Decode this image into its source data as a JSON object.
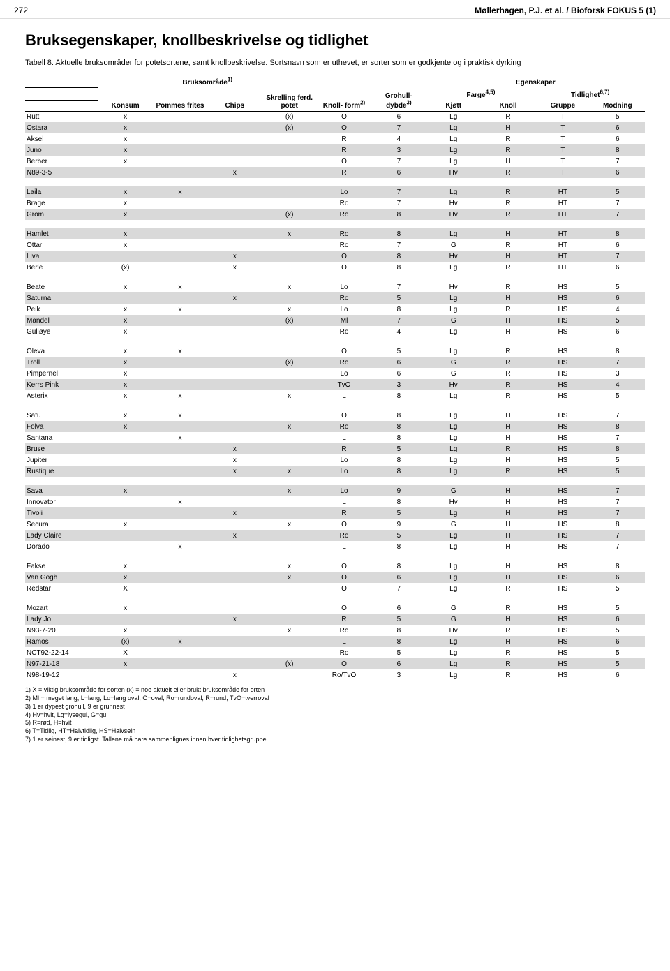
{
  "header": {
    "page_num": "272",
    "authors": "Møllerhagen, P.J. et al. / Bioforsk FOKUS 5 (1)"
  },
  "title": "Bruksegenskaper, knollbeskrivelse og tidlighet",
  "caption": "Tabell 8. Aktuelle bruksområder for potetsortene, samt knollbeskrivelse. Sortsnavn som er uthevet, er sorter som er godkjente og i praktisk dyrking",
  "columns": {
    "group_usage": "Bruksområde",
    "group_prop": "Egenskaper",
    "konsum": "Konsum",
    "pommes": "Pommes frites",
    "chips": "Chips",
    "skrelling": "Skrelling ferd. potet",
    "knollform": "Knoll- form",
    "grohull": "Grohull- dybde",
    "farge": "Farge",
    "kjott": "Kjøtt",
    "knoll": "Knoll",
    "tidlighet": "Tidlighet",
    "gruppe": "Gruppe",
    "modning": "Modning"
  },
  "colors": {
    "stripe": "#d9d9d9",
    "bg": "#ffffff",
    "text": "#000000",
    "border": "#000000"
  },
  "groups": [
    [
      {
        "n": "Rutt",
        "konsum": "x",
        "pommes": "",
        "chips": "",
        "skrelling": "(x)",
        "form": "O",
        "gro": "6",
        "kjott": "Lg",
        "knoll": "R",
        "gruppe": "T",
        "mod": "5"
      },
      {
        "n": "Ostara",
        "konsum": "x",
        "pommes": "",
        "chips": "",
        "skrelling": "(x)",
        "form": "O",
        "gro": "7",
        "kjott": "Lg",
        "knoll": "H",
        "gruppe": "T",
        "mod": "6",
        "stripe": true
      },
      {
        "n": "Aksel",
        "konsum": "x",
        "pommes": "",
        "chips": "",
        "skrelling": "",
        "form": "R",
        "gro": "4",
        "kjott": "Lg",
        "knoll": "R",
        "gruppe": "T",
        "mod": "6"
      },
      {
        "n": "Juno",
        "konsum": "x",
        "pommes": "",
        "chips": "",
        "skrelling": "",
        "form": "R",
        "gro": "3",
        "kjott": "Lg",
        "knoll": "R",
        "gruppe": "T",
        "mod": "8",
        "stripe": true
      },
      {
        "n": "Berber",
        "konsum": "x",
        "pommes": "",
        "chips": "",
        "skrelling": "",
        "form": "O",
        "gro": "7",
        "kjott": "Lg",
        "knoll": "H",
        "gruppe": "T",
        "mod": "7"
      },
      {
        "n": "N89-3-5",
        "konsum": "",
        "pommes": "",
        "chips": "x",
        "skrelling": "",
        "form": "R",
        "gro": "6",
        "kjott": "Hv",
        "knoll": "R",
        "gruppe": "T",
        "mod": "6",
        "stripe": true
      }
    ],
    [
      {
        "n": "Laila",
        "konsum": "x",
        "pommes": "x",
        "chips": "",
        "skrelling": "",
        "form": "Lo",
        "gro": "7",
        "kjott": "Lg",
        "knoll": "R",
        "gruppe": "HT",
        "mod": "5",
        "stripe": true
      },
      {
        "n": "Brage",
        "konsum": "x",
        "pommes": "",
        "chips": "",
        "skrelling": "",
        "form": "Ro",
        "gro": "7",
        "kjott": "Hv",
        "knoll": "R",
        "gruppe": "HT",
        "mod": "7"
      },
      {
        "n": "Grom",
        "konsum": "x",
        "pommes": "",
        "chips": "",
        "skrelling": "(x)",
        "form": "Ro",
        "gro": "8",
        "kjott": "Hv",
        "knoll": "R",
        "gruppe": "HT",
        "mod": "7",
        "stripe": true
      }
    ],
    [
      {
        "n": "Hamlet",
        "konsum": "x",
        "pommes": "",
        "chips": "",
        "skrelling": "x",
        "form": "Ro",
        "gro": "8",
        "kjott": "Lg",
        "knoll": "H",
        "gruppe": "HT",
        "mod": "8",
        "stripe": true
      },
      {
        "n": "Ottar",
        "konsum": "x",
        "pommes": "",
        "chips": "",
        "skrelling": "",
        "form": "Ro",
        "gro": "7",
        "kjott": "G",
        "knoll": "R",
        "gruppe": "HT",
        "mod": "6"
      },
      {
        "n": "Liva",
        "konsum": "",
        "pommes": "",
        "chips": "x",
        "skrelling": "",
        "form": "O",
        "gro": "8",
        "kjott": "Hv",
        "knoll": "H",
        "gruppe": "HT",
        "mod": "7",
        "stripe": true
      },
      {
        "n": "Berle",
        "konsum": "(x)",
        "pommes": "",
        "chips": "x",
        "skrelling": "",
        "form": "O",
        "gro": "8",
        "kjott": "Lg",
        "knoll": "R",
        "gruppe": "HT",
        "mod": "6"
      }
    ],
    [
      {
        "n": "Beate",
        "konsum": "x",
        "pommes": "x",
        "chips": "",
        "skrelling": "x",
        "form": "Lo",
        "gro": "7",
        "kjott": "Hv",
        "knoll": "R",
        "gruppe": "HS",
        "mod": "5"
      },
      {
        "n": "Saturna",
        "konsum": "",
        "pommes": "",
        "chips": "x",
        "skrelling": "",
        "form": "Ro",
        "gro": "5",
        "kjott": "Lg",
        "knoll": "H",
        "gruppe": "HS",
        "mod": "6",
        "stripe": true
      },
      {
        "n": "Peik",
        "konsum": "x",
        "pommes": "x",
        "chips": "",
        "skrelling": "x",
        "form": "Lo",
        "gro": "8",
        "kjott": "Lg",
        "knoll": "R",
        "gruppe": "HS",
        "mod": "4"
      },
      {
        "n": "Mandel",
        "konsum": "x",
        "pommes": "",
        "chips": "",
        "skrelling": "(x)",
        "form": "Ml",
        "gro": "7",
        "kjott": "G",
        "knoll": "H",
        "gruppe": "HS",
        "mod": "5",
        "stripe": true
      },
      {
        "n": "Gulløye",
        "konsum": "x",
        "pommes": "",
        "chips": "",
        "skrelling": "",
        "form": "Ro",
        "gro": "4",
        "kjott": "Lg",
        "knoll": "H",
        "gruppe": "HS",
        "mod": "6"
      }
    ],
    [
      {
        "n": "Oleva",
        "konsum": "x",
        "pommes": "x",
        "chips": "",
        "skrelling": "",
        "form": "O",
        "gro": "5",
        "kjott": "Lg",
        "knoll": "R",
        "gruppe": "HS",
        "mod": "8"
      },
      {
        "n": "Troll",
        "konsum": "x",
        "pommes": "",
        "chips": "",
        "skrelling": "(x)",
        "form": "Ro",
        "gro": "6",
        "kjott": "G",
        "knoll": "R",
        "gruppe": "HS",
        "mod": "7",
        "stripe": true
      },
      {
        "n": "Pimpernel",
        "konsum": "x",
        "pommes": "",
        "chips": "",
        "skrelling": "",
        "form": "Lo",
        "gro": "6",
        "kjott": "G",
        "knoll": "R",
        "gruppe": "HS",
        "mod": "3"
      },
      {
        "n": "Kerrs Pink",
        "konsum": "x",
        "pommes": "",
        "chips": "",
        "skrelling": "",
        "form": "TvO",
        "gro": "3",
        "kjott": "Hv",
        "knoll": "R",
        "gruppe": "HS",
        "mod": "4",
        "stripe": true
      },
      {
        "n": "Asterix",
        "konsum": "x",
        "pommes": "x",
        "chips": "",
        "skrelling": "x",
        "form": "L",
        "gro": "8",
        "kjott": "Lg",
        "knoll": "R",
        "gruppe": "HS",
        "mod": "5"
      }
    ],
    [
      {
        "n": "Satu",
        "konsum": "x",
        "pommes": "x",
        "chips": "",
        "skrelling": "",
        "form": "O",
        "gro": "8",
        "kjott": "Lg",
        "knoll": "H",
        "gruppe": "HS",
        "mod": "7"
      },
      {
        "n": "Folva",
        "konsum": "x",
        "pommes": "",
        "chips": "",
        "skrelling": "x",
        "form": "Ro",
        "gro": "8",
        "kjott": "Lg",
        "knoll": "H",
        "gruppe": "HS",
        "mod": "8",
        "stripe": true
      },
      {
        "n": "Santana",
        "konsum": "",
        "pommes": "x",
        "chips": "",
        "skrelling": "",
        "form": "L",
        "gro": "8",
        "kjott": "Lg",
        "knoll": "H",
        "gruppe": "HS",
        "mod": "7"
      },
      {
        "n": "Bruse",
        "konsum": "",
        "pommes": "",
        "chips": "x",
        "skrelling": "",
        "form": "R",
        "gro": "5",
        "kjott": "Lg",
        "knoll": "R",
        "gruppe": "HS",
        "mod": "8",
        "stripe": true
      },
      {
        "n": "Jupiter",
        "konsum": "",
        "pommes": "",
        "chips": "x",
        "skrelling": "",
        "form": "Lo",
        "gro": "8",
        "kjott": "Lg",
        "knoll": "H",
        "gruppe": "HS",
        "mod": "5"
      },
      {
        "n": "Rustique",
        "konsum": "",
        "pommes": "",
        "chips": "x",
        "skrelling": "x",
        "form": "Lo",
        "gro": "8",
        "kjott": "Lg",
        "knoll": "R",
        "gruppe": "HS",
        "mod": "5",
        "stripe": true
      }
    ],
    [
      {
        "n": "Sava",
        "konsum": "x",
        "pommes": "",
        "chips": "",
        "skrelling": "x",
        "form": "Lo",
        "gro": "9",
        "kjott": "G",
        "knoll": "H",
        "gruppe": "HS",
        "mod": "7",
        "stripe": true
      },
      {
        "n": "Innovator",
        "konsum": "",
        "pommes": "x",
        "chips": "",
        "skrelling": "",
        "form": "L",
        "gro": "8",
        "kjott": "Hv",
        "knoll": "H",
        "gruppe": "HS",
        "mod": "7"
      },
      {
        "n": "Tivoli",
        "konsum": "",
        "pommes": "",
        "chips": "x",
        "skrelling": "",
        "form": "R",
        "gro": "5",
        "kjott": "Lg",
        "knoll": "H",
        "gruppe": "HS",
        "mod": "7",
        "stripe": true
      },
      {
        "n": "Secura",
        "konsum": "x",
        "pommes": "",
        "chips": "",
        "skrelling": "x",
        "form": "O",
        "gro": "9",
        "kjott": "G",
        "knoll": "H",
        "gruppe": "HS",
        "mod": "8"
      },
      {
        "n": "Lady Claire",
        "konsum": "",
        "pommes": "",
        "chips": "x",
        "skrelling": "",
        "form": "Ro",
        "gro": "5",
        "kjott": "Lg",
        "knoll": "H",
        "gruppe": "HS",
        "mod": "7",
        "stripe": true
      },
      {
        "n": "Dorado",
        "konsum": "",
        "pommes": "x",
        "chips": "",
        "skrelling": "",
        "form": "L",
        "gro": "8",
        "kjott": "Lg",
        "knoll": "H",
        "gruppe": "HS",
        "mod": "7"
      }
    ],
    [
      {
        "n": "Fakse",
        "konsum": "x",
        "pommes": "",
        "chips": "",
        "skrelling": "x",
        "form": "O",
        "gro": "8",
        "kjott": "Lg",
        "knoll": "H",
        "gruppe": "HS",
        "mod": "8"
      },
      {
        "n": "Van Gogh",
        "konsum": "x",
        "pommes": "",
        "chips": "",
        "skrelling": "x",
        "form": "O",
        "gro": "6",
        "kjott": "Lg",
        "knoll": "H",
        "gruppe": "HS",
        "mod": "6",
        "stripe": true
      },
      {
        "n": "Redstar",
        "konsum": "X",
        "pommes": "",
        "chips": "",
        "skrelling": "",
        "form": "O",
        "gro": "7",
        "kjott": "Lg",
        "knoll": "R",
        "gruppe": "HS",
        "mod": "5"
      }
    ],
    [
      {
        "n": "Mozart",
        "konsum": "x",
        "pommes": "",
        "chips": "",
        "skrelling": "",
        "form": "O",
        "gro": "6",
        "kjott": "G",
        "knoll": "R",
        "gruppe": "HS",
        "mod": "5"
      },
      {
        "n": "Lady Jo",
        "konsum": "",
        "pommes": "",
        "chips": "x",
        "skrelling": "",
        "form": "R",
        "gro": "5",
        "kjott": "G",
        "knoll": "H",
        "gruppe": "HS",
        "mod": "6",
        "stripe": true
      },
      {
        "n": "N93-7-20",
        "konsum": "x",
        "pommes": "",
        "chips": "",
        "skrelling": "x",
        "form": "Ro",
        "gro": "8",
        "kjott": "Hv",
        "knoll": "R",
        "gruppe": "HS",
        "mod": "5"
      },
      {
        "n": "Ramos",
        "konsum": "(x)",
        "pommes": "x",
        "chips": "",
        "skrelling": "",
        "form": "L",
        "gro": "8",
        "kjott": "Lg",
        "knoll": "H",
        "gruppe": "HS",
        "mod": "6",
        "stripe": true
      },
      {
        "n": "NCT92-22-14",
        "konsum": "X",
        "pommes": "",
        "chips": "",
        "skrelling": "",
        "form": "Ro",
        "gro": "5",
        "kjott": "Lg",
        "knoll": "R",
        "gruppe": "HS",
        "mod": "5"
      },
      {
        "n": "N97-21-18",
        "konsum": "x",
        "pommes": "",
        "chips": "",
        "skrelling": "(x)",
        "form": "O",
        "gro": "6",
        "kjott": "Lg",
        "knoll": "R",
        "gruppe": "HS",
        "mod": "5",
        "stripe": true
      },
      {
        "n": "N98-19-12",
        "konsum": "",
        "pommes": "",
        "chips": "x",
        "skrelling": "",
        "form": "Ro/TvO",
        "gro": "3",
        "kjott": "Lg",
        "knoll": "R",
        "gruppe": "HS",
        "mod": "6"
      }
    ]
  ],
  "footnotes": [
    "1) X = viktig bruksområde for sorten (x) = noe aktuelt eller brukt bruksområde for orten",
    "2) Ml = meget lang, L=lang, Lo=lang oval, O=oval, Ro=rundoval, R=rund, TvO=tverroval",
    "3) 1 er dypest grohull, 9 er grunnest",
    "4) Hv=hvit, Lg=lysegul, G=gul",
    "5) R=rød, H=hvit",
    "6) T=Tidlig, HT=Halvtidlig, HS=Halvsein",
    "7) 1 er seinest, 9 er tidligst. Tallene må bare sammenlignes innen hver tidlighetsgruppe"
  ]
}
